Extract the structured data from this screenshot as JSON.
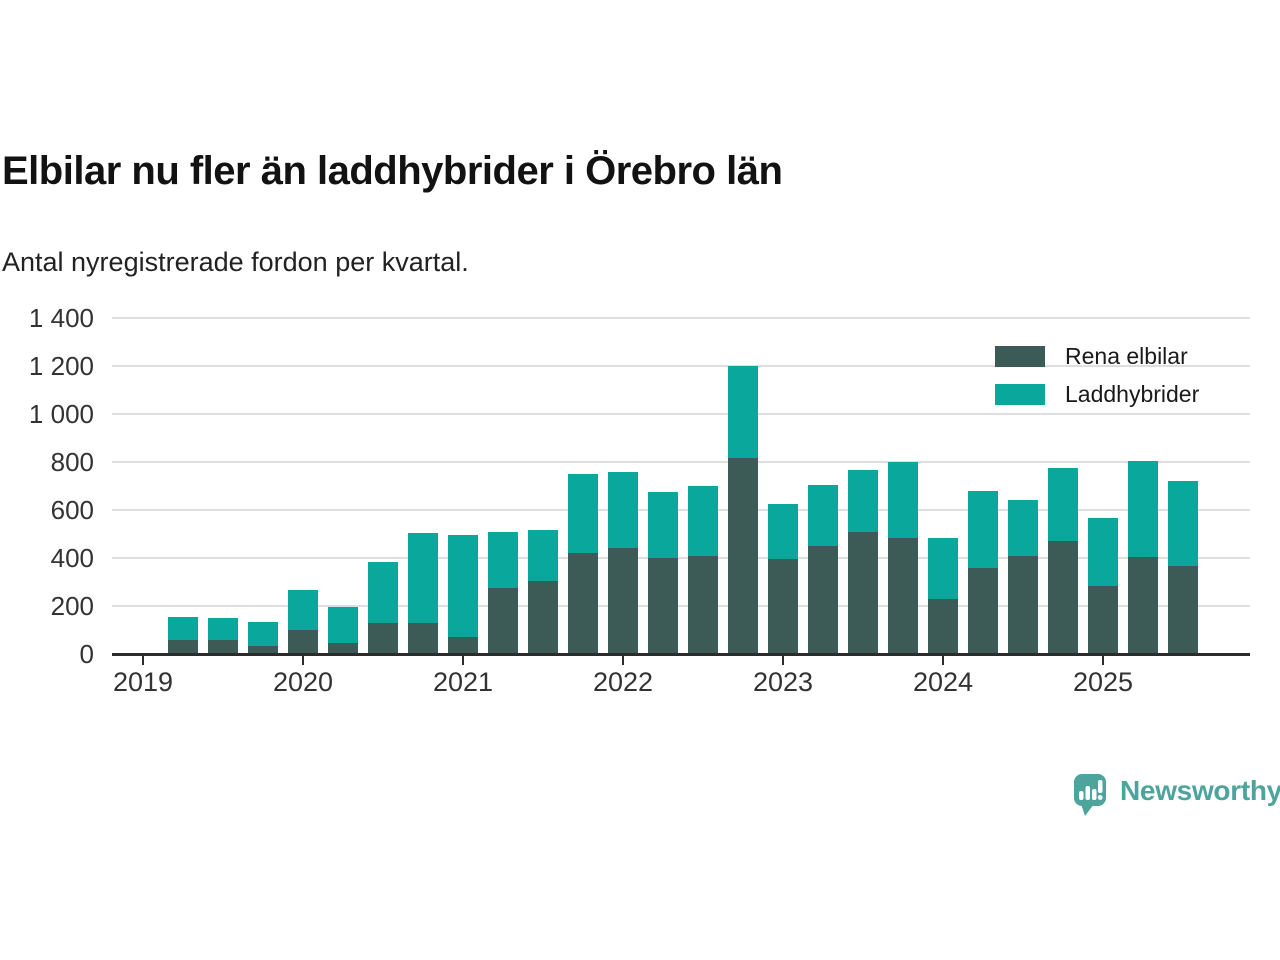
{
  "chart_data": {
    "type": "bar",
    "stacked": true,
    "title": "Elbilar nu fler än laddhybrider i Örebro län",
    "subtitle": "Antal nyregistrerade fordon per kvartal.",
    "categories": [
      "2019 Q2",
      "2019 Q3",
      "2019 Q4",
      "2020 Q1",
      "2020 Q2",
      "2020 Q3",
      "2020 Q4",
      "2021 Q1",
      "2021 Q2",
      "2021 Q3",
      "2021 Q4",
      "2022 Q1",
      "2022 Q2",
      "2022 Q3",
      "2022 Q4",
      "2023 Q1",
      "2023 Q2",
      "2023 Q3",
      "2023 Q4",
      "2024 Q1",
      "2024 Q2",
      "2024 Q3",
      "2024 Q4",
      "2025 Q1",
      "2025 Q2",
      "2025 Q3"
    ],
    "series": [
      {
        "name": "Rena elbilar",
        "color": "#3d5b56",
        "values": [
          60,
          60,
          35,
          100,
          45,
          130,
          130,
          70,
          275,
          305,
          420,
          440,
          400,
          410,
          815,
          395,
          450,
          510,
          485,
          230,
          360,
          410,
          470,
          285,
          405,
          365
        ]
      },
      {
        "name": "Laddhybrider",
        "color": "#0aa79d",
        "values": [
          95,
          90,
          100,
          165,
          150,
          255,
          375,
          425,
          235,
          210,
          330,
          320,
          275,
          290,
          385,
          230,
          255,
          255,
          315,
          255,
          320,
          230,
          305,
          280,
          400,
          355
        ]
      }
    ],
    "ylabel": "",
    "xlabel": "",
    "ylim": [
      0,
      1400
    ],
    "yticks": [
      0,
      200,
      400,
      600,
      800,
      1000,
      1200,
      1400
    ],
    "ytick_labels": [
      "0",
      "200",
      "400",
      "600",
      "800",
      "1 000",
      "1 200",
      "1 400"
    ],
    "xtick_labels": [
      "2019",
      "2020",
      "2021",
      "2022",
      "2023",
      "2024",
      "2025"
    ],
    "grid": "horizontal",
    "legend_position": "top-right"
  },
  "branding": {
    "logo_text": "Newsworthy",
    "logo_color": "#4ca49c",
    "icon": "newsworthy-speech-bubble-bar-chart-icon"
  },
  "colors": {
    "background": "#ffffff",
    "axis": "#2b2b2b",
    "gridline": "#dedede",
    "tick_label": "#333333",
    "title_text": "#121212"
  }
}
